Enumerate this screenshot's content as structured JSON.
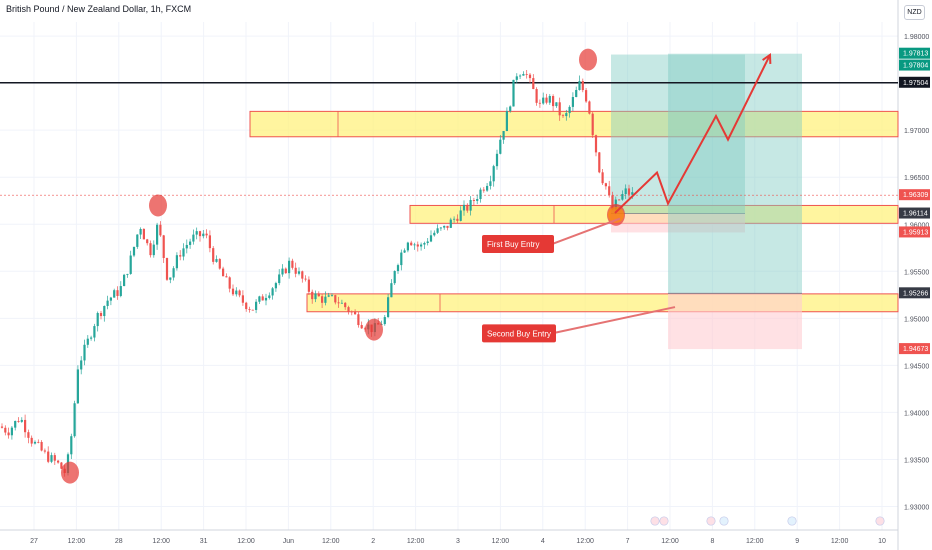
{
  "header": {
    "title": "British Pound / New Zealand Dollar, 1h, FXCM",
    "currency": "NZD"
  },
  "colors": {
    "up": "#26a69a",
    "down": "#ef5350",
    "zone_fill": "#fff176",
    "zone_border": "#ef5350",
    "target_fill": "#80cbc4",
    "stop_fill": "#ffcdd2",
    "annotation_red": "#e53935",
    "grid": "#f0f3fa"
  },
  "chart_data": {
    "type": "candlestick",
    "symbol": "GBPNZD",
    "timeframe": "1h",
    "ylim": [
      1.9275,
      1.9815
    ],
    "y_ticks": [
      "1.93000",
      "1.93500",
      "1.94000",
      "1.94500",
      "1.95000",
      "1.95500",
      "1.96000",
      "1.96500",
      "1.97000",
      "1.97500",
      "1.98000"
    ],
    "x_ticks": [
      "27",
      "12:00",
      "28",
      "12:00",
      "31",
      "12:00",
      "Jun",
      "12:00",
      "2",
      "12:00",
      "3",
      "12:00",
      "4",
      "12:00",
      "7",
      "12:00",
      "8",
      "12:00",
      "9",
      "12:00",
      "10"
    ],
    "price_path": [
      [
        0,
        1.9385
      ],
      [
        8,
        1.938
      ],
      [
        20,
        1.9395
      ],
      [
        32,
        1.937
      ],
      [
        45,
        1.9355
      ],
      [
        58,
        1.9345
      ],
      [
        66,
        1.9335
      ],
      [
        72,
        1.938
      ],
      [
        78,
        1.945
      ],
      [
        86,
        1.947
      ],
      [
        96,
        1.95
      ],
      [
        108,
        1.952
      ],
      [
        120,
        1.953
      ],
      [
        130,
        1.956
      ],
      [
        140,
        1.96
      ],
      [
        150,
        1.957
      ],
      [
        158,
        1.96
      ],
      [
        168,
        1.954
      ],
      [
        180,
        1.957
      ],
      [
        192,
        1.9585
      ],
      [
        205,
        1.959
      ],
      [
        215,
        1.956
      ],
      [
        228,
        1.9535
      ],
      [
        240,
        1.952
      ],
      [
        252,
        1.951
      ],
      [
        265,
        1.9525
      ],
      [
        278,
        1.954
      ],
      [
        290,
        1.956
      ],
      [
        300,
        1.9545
      ],
      [
        312,
        1.9525
      ],
      [
        324,
        1.952
      ],
      [
        336,
        1.952
      ],
      [
        348,
        1.951
      ],
      [
        362,
        1.9495
      ],
      [
        374,
        1.9488
      ],
      [
        385,
        1.95
      ],
      [
        395,
        1.9555
      ],
      [
        408,
        1.9585
      ],
      [
        420,
        1.9575
      ],
      [
        432,
        1.959
      ],
      [
        444,
        1.9595
      ],
      [
        458,
        1.961
      ],
      [
        470,
        1.962
      ],
      [
        480,
        1.9635
      ],
      [
        490,
        1.965
      ],
      [
        500,
        1.969
      ],
      [
        508,
        1.972
      ],
      [
        516,
        1.976
      ],
      [
        524,
        1.9765
      ],
      [
        532,
        1.9745
      ],
      [
        540,
        1.9725
      ],
      [
        548,
        1.9735
      ],
      [
        556,
        1.9725
      ],
      [
        564,
        1.971
      ],
      [
        572,
        1.973
      ],
      [
        580,
        1.975
      ],
      [
        588,
        1.973
      ],
      [
        594,
        1.969
      ],
      [
        600,
        1.9655
      ],
      [
        606,
        1.964
      ],
      [
        612,
        1.9615
      ],
      [
        618,
        1.9625
      ],
      [
        626,
        1.9635
      ],
      [
        634,
        1.963
      ]
    ],
    "price_lines": [
      {
        "label": "1.97504",
        "value": 1.97504,
        "color": "#131722"
      },
      {
        "label": "1.96309",
        "value": 1.96309,
        "color": "#ef5350"
      }
    ],
    "price_axis_labels": [
      {
        "label": "1.97813",
        "value": 1.97813,
        "color": "#089981"
      },
      {
        "label": "1.97804",
        "value": 1.97804,
        "color": "#089981"
      },
      {
        "label": "1.97504",
        "value": 1.97504,
        "color": "#131722"
      },
      {
        "label": "1.96309",
        "value": 1.96309,
        "color": "#ef5350"
      },
      {
        "label": "1.96114",
        "value": 1.96114,
        "color": "#363a45"
      },
      {
        "label": "1.95913",
        "value": 1.95913,
        "color": "#ef5350"
      },
      {
        "label": "1.95266",
        "value": 1.95266,
        "color": "#363a45"
      },
      {
        "label": "1.94673",
        "value": 1.94673,
        "color": "#ef5350"
      }
    ],
    "zones": [
      {
        "y_top": 1.972,
        "y_bottom": 1.9693,
        "x_start": 250,
        "x_end": 898,
        "divider": 338
      },
      {
        "y_top": 1.962,
        "y_bottom": 1.9601,
        "x_start": 410,
        "x_end": 898,
        "divider": 554
      },
      {
        "y_top": 1.9526,
        "y_bottom": 1.9507,
        "x_start": 307,
        "x_end": 898,
        "divider": 440
      }
    ],
    "positions": [
      {
        "entry": 1.96114,
        "target": 1.97804,
        "stop": 1.95913,
        "x_start": 611,
        "x_end": 745
      },
      {
        "entry": 1.95266,
        "target": 1.97813,
        "stop": 1.94673,
        "x_start": 668,
        "x_end": 802
      }
    ],
    "projection": [
      [
        615,
        1.9612
      ],
      [
        657,
        1.9655
      ],
      [
        668,
        1.9622
      ],
      [
        716,
        1.9715
      ],
      [
        728,
        1.969
      ],
      [
        770,
        1.978
      ]
    ],
    "annotations": [
      {
        "label": "First Buy Entry",
        "box": [
          482,
          1.9579
        ],
        "tip": [
          620,
          1.9606
        ]
      },
      {
        "label": "Second Buy Entry",
        "box": [
          482,
          1.9484
        ],
        "tip": [
          675,
          1.9512
        ]
      }
    ],
    "markers": [
      [
        70,
        1.9336
      ],
      [
        158,
        1.962
      ],
      [
        374,
        1.9488
      ],
      [
        588,
        1.9775
      ],
      [
        616,
        1.961
      ]
    ]
  }
}
